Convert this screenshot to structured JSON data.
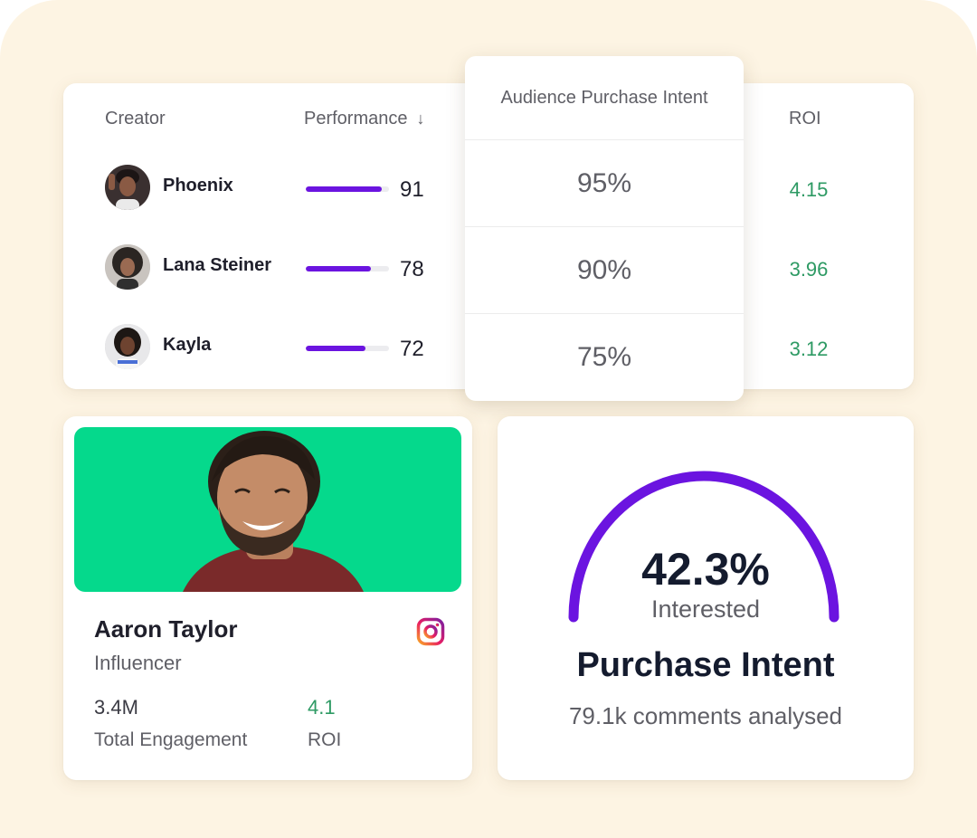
{
  "table": {
    "headers": {
      "creator": "Creator",
      "performance": "Performance",
      "performance_sort_icon": "arrow-down-icon",
      "intent": "Audience Purchase Intent",
      "roi": "ROI"
    },
    "rows": [
      {
        "name": "Phoenix",
        "performance": "91",
        "performance_fraction": 0.91,
        "intent": "95%",
        "roi": "4.15"
      },
      {
        "name": "Lana Steiner",
        "performance": "78",
        "performance_fraction": 0.78,
        "intent": "90%",
        "roi": "3.96"
      },
      {
        "name": "Kayla",
        "performance": "72",
        "performance_fraction": 0.72,
        "intent": "75%",
        "roi": "3.12"
      }
    ]
  },
  "profile": {
    "name": "Aaron Taylor",
    "role": "Influencer",
    "platform_icon": "instagram-icon",
    "engagement_value": "3.4M",
    "engagement_label": "Total Engagement",
    "roi_value": "4.1",
    "roi_label": "ROI"
  },
  "gauge": {
    "value": "42.3%",
    "value_label": "Interested",
    "title": "Purchase Intent",
    "caption": "79.1k comments analysed"
  },
  "colors": {
    "accent": "#6b14e0",
    "positive": "#2e9a64",
    "hero_bg": "#05d98c",
    "backdrop": "#fdf4e3"
  }
}
